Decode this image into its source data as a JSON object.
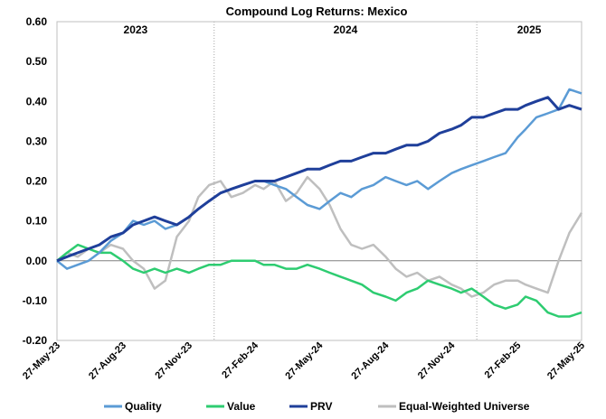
{
  "chart_data": {
    "type": "line",
    "title": "Compound Log Returns: Mexico",
    "ylim": [
      -0.2,
      0.6
    ],
    "yticks": [
      "0.60",
      "0.50",
      "0.40",
      "0.30",
      "0.20",
      "0.10",
      "0.00",
      "-0.10",
      "-0.20"
    ],
    "xlim": [
      "2023-05-27",
      "2025-05-27"
    ],
    "xticks": [
      {
        "date": "2023-05-27",
        "label": "27-May-23"
      },
      {
        "date": "2023-08-27",
        "label": "27-Aug-23"
      },
      {
        "date": "2023-11-27",
        "label": "27-Nov-23"
      },
      {
        "date": "2024-02-27",
        "label": "27-Feb-24"
      },
      {
        "date": "2024-05-27",
        "label": "27-May-24"
      },
      {
        "date": "2024-08-27",
        "label": "27-Aug-24"
      },
      {
        "date": "2024-11-27",
        "label": "27-Nov-24"
      },
      {
        "date": "2025-02-27",
        "label": "27-Feb-25"
      },
      {
        "date": "2025-05-27",
        "label": "27-May-25"
      }
    ],
    "year_bands": [
      {
        "label": "2023",
        "start": "2023-05-27",
        "end": "2024-01-01"
      },
      {
        "label": "2024",
        "start": "2024-01-01",
        "end": "2025-01-01"
      },
      {
        "label": "2025",
        "start": "2025-01-01",
        "end": "2025-05-27"
      }
    ],
    "legend_position": "bottom",
    "grid": false,
    "series": [
      {
        "name": "Quality",
        "color": "#5b9bd5",
        "x": [
          "2023-05-27",
          "2023-06-10",
          "2023-06-25",
          "2023-07-10",
          "2023-07-25",
          "2023-08-10",
          "2023-08-27",
          "2023-09-10",
          "2023-09-25",
          "2023-10-10",
          "2023-10-25",
          "2023-11-10",
          "2023-11-27",
          "2023-12-10",
          "2023-12-25",
          "2024-01-10",
          "2024-01-25",
          "2024-02-10",
          "2024-02-27",
          "2024-03-10",
          "2024-03-25",
          "2024-04-10",
          "2024-04-25",
          "2024-05-10",
          "2024-05-27",
          "2024-06-10",
          "2024-06-25",
          "2024-07-10",
          "2024-07-25",
          "2024-08-10",
          "2024-08-27",
          "2024-09-10",
          "2024-09-25",
          "2024-10-10",
          "2024-10-25",
          "2024-11-10",
          "2024-11-27",
          "2024-12-10",
          "2024-12-25",
          "2025-01-10",
          "2025-01-25",
          "2025-02-10",
          "2025-02-27",
          "2025-03-10",
          "2025-03-25",
          "2025-04-10",
          "2025-04-25",
          "2025-05-10",
          "2025-05-27"
        ],
        "y": [
          0.0,
          -0.02,
          -0.01,
          0.0,
          0.02,
          0.05,
          0.07,
          0.1,
          0.09,
          0.1,
          0.08,
          0.09,
          0.11,
          0.13,
          0.15,
          0.17,
          0.18,
          0.19,
          0.2,
          0.2,
          0.19,
          0.18,
          0.16,
          0.14,
          0.13,
          0.15,
          0.17,
          0.16,
          0.18,
          0.19,
          0.21,
          0.2,
          0.19,
          0.2,
          0.18,
          0.2,
          0.22,
          0.23,
          0.24,
          0.25,
          0.26,
          0.27,
          0.31,
          0.33,
          0.36,
          0.37,
          0.38,
          0.43,
          0.42
        ]
      },
      {
        "name": "Value",
        "color": "#2ecc71",
        "x": [
          "2023-05-27",
          "2023-06-10",
          "2023-06-25",
          "2023-07-10",
          "2023-07-25",
          "2023-08-10",
          "2023-08-27",
          "2023-09-10",
          "2023-09-25",
          "2023-10-10",
          "2023-10-25",
          "2023-11-10",
          "2023-11-27",
          "2023-12-10",
          "2023-12-25",
          "2024-01-10",
          "2024-01-25",
          "2024-02-10",
          "2024-02-27",
          "2024-03-10",
          "2024-03-25",
          "2024-04-10",
          "2024-04-25",
          "2024-05-10",
          "2024-05-27",
          "2024-06-10",
          "2024-06-25",
          "2024-07-10",
          "2024-07-25",
          "2024-08-10",
          "2024-08-27",
          "2024-09-10",
          "2024-09-25",
          "2024-10-10",
          "2024-10-25",
          "2024-11-10",
          "2024-11-27",
          "2024-12-10",
          "2024-12-25",
          "2025-01-10",
          "2025-01-25",
          "2025-02-10",
          "2025-02-27",
          "2025-03-10",
          "2025-03-25",
          "2025-04-10",
          "2025-04-25",
          "2025-05-10",
          "2025-05-27"
        ],
        "y": [
          0.0,
          0.02,
          0.04,
          0.03,
          0.02,
          0.02,
          0.0,
          -0.02,
          -0.03,
          -0.02,
          -0.03,
          -0.02,
          -0.03,
          -0.02,
          -0.01,
          -0.01,
          0.0,
          0.0,
          0.0,
          -0.01,
          -0.01,
          -0.02,
          -0.02,
          -0.01,
          -0.02,
          -0.03,
          -0.04,
          -0.05,
          -0.06,
          -0.08,
          -0.09,
          -0.1,
          -0.08,
          -0.07,
          -0.05,
          -0.06,
          -0.07,
          -0.08,
          -0.07,
          -0.09,
          -0.11,
          -0.12,
          -0.11,
          -0.09,
          -0.1,
          -0.13,
          -0.14,
          -0.14,
          -0.13
        ]
      },
      {
        "name": "PRV",
        "color": "#1f3f9a",
        "x": [
          "2023-05-27",
          "2023-06-10",
          "2023-06-25",
          "2023-07-10",
          "2023-07-25",
          "2023-08-10",
          "2023-08-27",
          "2023-09-10",
          "2023-09-25",
          "2023-10-10",
          "2023-10-25",
          "2023-11-10",
          "2023-11-27",
          "2023-12-10",
          "2023-12-25",
          "2024-01-10",
          "2024-01-25",
          "2024-02-10",
          "2024-02-27",
          "2024-03-10",
          "2024-03-25",
          "2024-04-10",
          "2024-04-25",
          "2024-05-10",
          "2024-05-27",
          "2024-06-10",
          "2024-06-25",
          "2024-07-10",
          "2024-07-25",
          "2024-08-10",
          "2024-08-27",
          "2024-09-10",
          "2024-09-25",
          "2024-10-10",
          "2024-10-25",
          "2024-11-10",
          "2024-11-27",
          "2024-12-10",
          "2024-12-25",
          "2025-01-10",
          "2025-01-25",
          "2025-02-10",
          "2025-02-27",
          "2025-03-10",
          "2025-03-25",
          "2025-04-10",
          "2025-04-25",
          "2025-05-10",
          "2025-05-27"
        ],
        "y": [
          0.0,
          0.01,
          0.02,
          0.03,
          0.04,
          0.06,
          0.07,
          0.09,
          0.1,
          0.11,
          0.1,
          0.09,
          0.11,
          0.13,
          0.15,
          0.17,
          0.18,
          0.19,
          0.2,
          0.2,
          0.2,
          0.21,
          0.22,
          0.23,
          0.23,
          0.24,
          0.25,
          0.25,
          0.26,
          0.27,
          0.27,
          0.28,
          0.29,
          0.29,
          0.3,
          0.32,
          0.33,
          0.34,
          0.36,
          0.36,
          0.37,
          0.38,
          0.38,
          0.39,
          0.4,
          0.41,
          0.38,
          0.39,
          0.38
        ]
      },
      {
        "name": "Equal-Weighted Universe",
        "color": "#bfbfbf",
        "x": [
          "2023-05-27",
          "2023-06-10",
          "2023-06-25",
          "2023-07-10",
          "2023-07-25",
          "2023-08-10",
          "2023-08-27",
          "2023-09-10",
          "2023-09-25",
          "2023-10-10",
          "2023-10-25",
          "2023-11-10",
          "2023-11-27",
          "2023-12-10",
          "2023-12-25",
          "2024-01-10",
          "2024-01-25",
          "2024-02-10",
          "2024-02-27",
          "2024-03-10",
          "2024-03-25",
          "2024-04-10",
          "2024-04-25",
          "2024-05-10",
          "2024-05-27",
          "2024-06-10",
          "2024-06-25",
          "2024-07-10",
          "2024-07-25",
          "2024-08-10",
          "2024-08-27",
          "2024-09-10",
          "2024-09-25",
          "2024-10-10",
          "2024-10-25",
          "2024-11-10",
          "2024-11-27",
          "2024-12-10",
          "2024-12-25",
          "2025-01-10",
          "2025-01-25",
          "2025-02-10",
          "2025-02-27",
          "2025-03-10",
          "2025-03-25",
          "2025-04-10",
          "2025-04-25",
          "2025-05-10",
          "2025-05-27"
        ],
        "y": [
          0.0,
          0.02,
          0.01,
          0.03,
          0.02,
          0.04,
          0.03,
          0.0,
          -0.02,
          -0.07,
          -0.05,
          0.06,
          0.1,
          0.16,
          0.19,
          0.2,
          0.16,
          0.17,
          0.19,
          0.18,
          0.2,
          0.15,
          0.17,
          0.21,
          0.18,
          0.14,
          0.08,
          0.04,
          0.03,
          0.04,
          0.01,
          -0.02,
          -0.04,
          -0.03,
          -0.05,
          -0.04,
          -0.06,
          -0.07,
          -0.09,
          -0.08,
          -0.06,
          -0.05,
          -0.05,
          -0.06,
          -0.07,
          -0.08,
          0.0,
          0.07,
          0.12
        ]
      }
    ]
  }
}
